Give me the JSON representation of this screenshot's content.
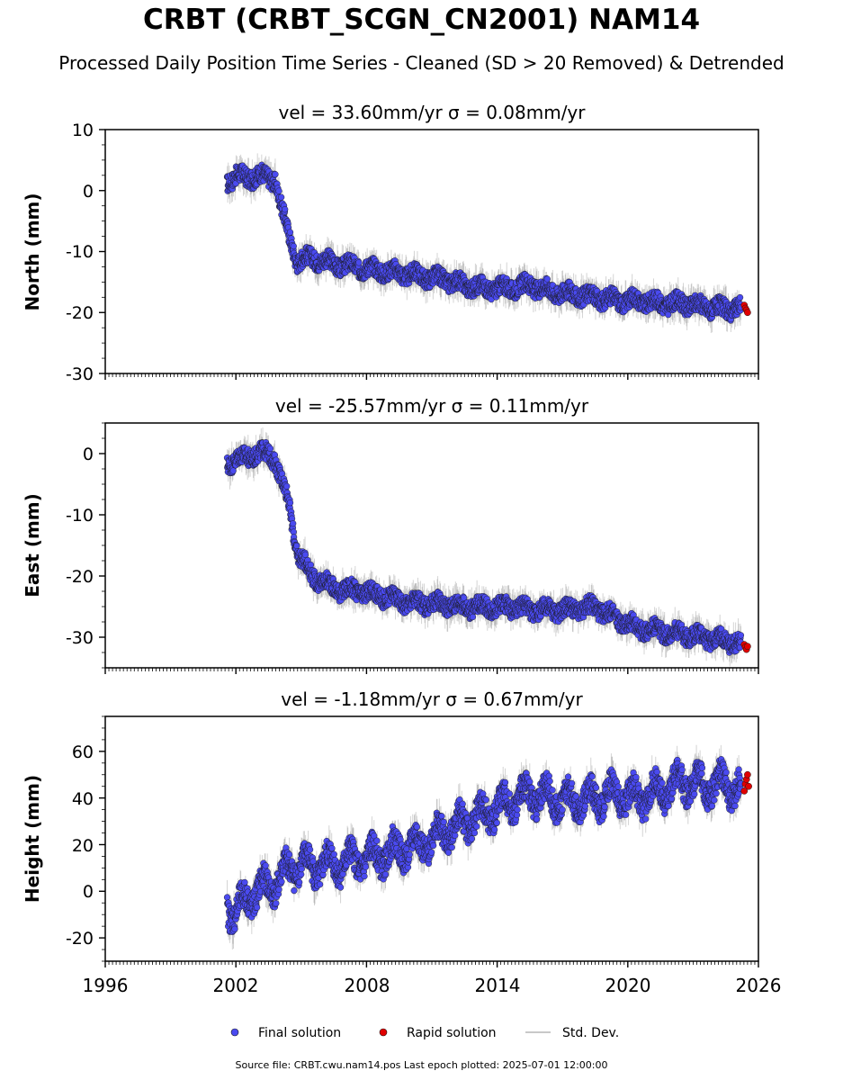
{
  "header": {
    "title": "CRBT (CRBT_SCGN_CN2001) NAM14",
    "subtitle": "Processed Daily Position Time Series - Cleaned (SD > 20 Removed) & Detrended"
  },
  "footer": {
    "source": "Source file: CRBT.cwu.nam14.pos  Last epoch plotted: 2025-07-01 12:00:00"
  },
  "legend": {
    "final": "Final solution",
    "rapid": "Rapid solution",
    "std": "Std. Dev."
  },
  "colors": {
    "final": "#4a4af0",
    "rapid": "#e00000",
    "std": "#c8c8c8",
    "point_edge": "#1a1a1a"
  },
  "chart_data": [
    {
      "type": "scatter",
      "subplot_title": "vel = 33.60mm/yr   σ = 0.08mm/yr",
      "ylabel": "North (mm)",
      "xlabel": "",
      "xlim": [
        1996,
        2026
      ],
      "ylim": [
        -30,
        10
      ],
      "yticks": [
        10,
        0,
        -10,
        -20,
        -30
      ],
      "series": [
        {
          "name": "Final solution",
          "x": [
            2001.6,
            2002.0,
            2002.5,
            2003.0,
            2003.5,
            2003.8,
            2004.1,
            2004.4,
            2004.8,
            2005.5,
            2006.5,
            2007.5,
            2008.5,
            2009.5,
            2010.5,
            2011.5,
            2012.5,
            2013.5,
            2014.5,
            2015.5,
            2016.5,
            2017.5,
            2018.5,
            2019.5,
            2020.5,
            2021.5,
            2022.5,
            2023.5,
            2024.5,
            2025.2
          ],
          "y": [
            1.5,
            2.5,
            2.0,
            2.5,
            2.0,
            2.0,
            -3,
            -7,
            -11.5,
            -11,
            -12,
            -12.5,
            -13,
            -13.5,
            -14,
            -14.5,
            -15.5,
            -16,
            -16,
            -15.5,
            -16.5,
            -17,
            -17.5,
            -18,
            -18,
            -18.5,
            -18.5,
            -19,
            -19.5,
            -19
          ]
        },
        {
          "name": "Rapid solution",
          "x": [
            2025.35,
            2025.4,
            2025.45,
            2025.5
          ],
          "y": [
            -18.8,
            -19.3,
            -19.6,
            -20.0
          ]
        }
      ]
    },
    {
      "type": "scatter",
      "subplot_title": "vel = -25.57mm/yr   σ = 0.11mm/yr",
      "ylabel": "East (mm)",
      "xlabel": "",
      "xlim": [
        1996,
        2026
      ],
      "ylim": [
        -35,
        5
      ],
      "yticks": [
        0,
        -10,
        -20,
        -30
      ],
      "series": [
        {
          "name": "Final solution",
          "x": [
            2001.6,
            2002.0,
            2002.5,
            2003.0,
            2003.5,
            2003.8,
            2004.1,
            2004.4,
            2004.8,
            2005.5,
            2006.5,
            2007.5,
            2008.5,
            2009.5,
            2010.5,
            2011.5,
            2012.5,
            2013.5,
            2014.5,
            2015.5,
            2016.5,
            2017.5,
            2018.5,
            2019.5,
            2020.5,
            2021.5,
            2022.5,
            2023.5,
            2024.5,
            2025.2
          ],
          "y": [
            -1.5,
            -1.0,
            -0.5,
            0.0,
            0.0,
            -1.0,
            -4.5,
            -7.5,
            -16,
            -20,
            -22,
            -22.5,
            -23,
            -24,
            -24.5,
            -24.5,
            -25,
            -25,
            -25,
            -25.5,
            -25.5,
            -25.5,
            -25,
            -27,
            -28.5,
            -29,
            -29.5,
            -30,
            -30.5,
            -31
          ]
        },
        {
          "name": "Rapid solution",
          "x": [
            2025.35,
            2025.4,
            2025.45,
            2025.5
          ],
          "y": [
            -31.2,
            -31.6,
            -32.0,
            -31.5
          ]
        }
      ]
    },
    {
      "type": "scatter",
      "subplot_title": "vel = -1.18mm/yr   σ = 0.67mm/yr",
      "ylabel": "Height (mm)",
      "xlabel": "",
      "xlim": [
        1996,
        2026
      ],
      "ylim": [
        -30,
        75
      ],
      "yticks": [
        60,
        40,
        20,
        0,
        -20
      ],
      "xticks": [
        1996,
        2002,
        2008,
        2014,
        2020,
        2026
      ],
      "series": [
        {
          "name": "Final solution",
          "x": [
            2001.6,
            2002.0,
            2002.5,
            2003.0,
            2003.5,
            2004.0,
            2004.5,
            2005.0,
            2005.5,
            2006.5,
            2007.5,
            2008.5,
            2009.5,
            2010.5,
            2011.5,
            2012.5,
            2013.5,
            2014.5,
            2015.5,
            2016.5,
            2017.5,
            2018.5,
            2019.5,
            2020.5,
            2021.5,
            2022.5,
            2023.5,
            2024.5,
            2025.2
          ],
          "y": [
            -5,
            -10,
            -3,
            0,
            2,
            5,
            10,
            12,
            10,
            12,
            13,
            15,
            18,
            20,
            25,
            30,
            33,
            38,
            42,
            40,
            38,
            40,
            42,
            40,
            43,
            47,
            45,
            46,
            44
          ]
        },
        {
          "name": "Rapid solution",
          "x": [
            2025.35,
            2025.4,
            2025.45,
            2025.5,
            2025.55
          ],
          "y": [
            43,
            46,
            48,
            50,
            45
          ]
        }
      ]
    }
  ]
}
